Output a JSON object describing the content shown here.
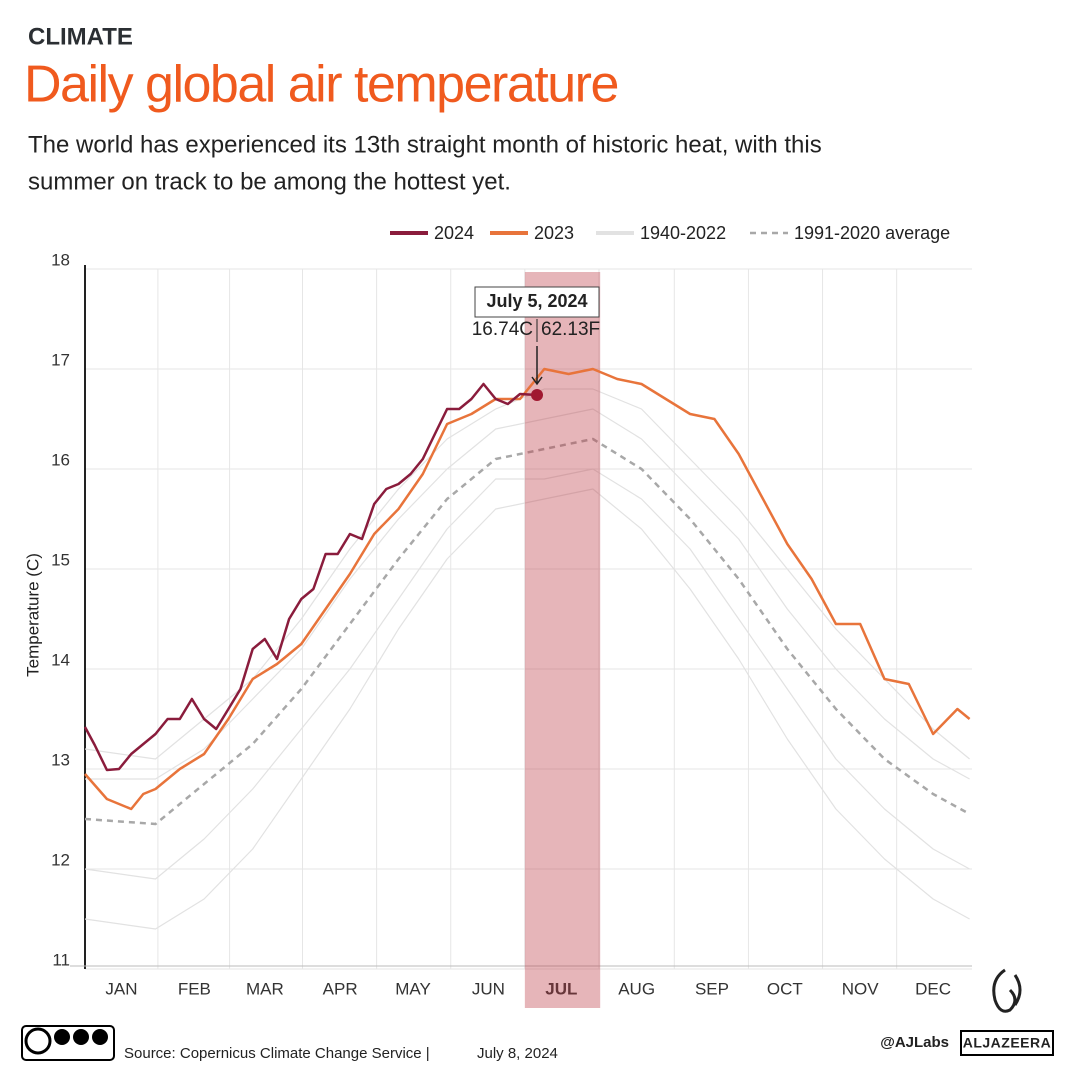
{
  "chart_data": {
    "type": "line",
    "kicker": "CLIMATE",
    "title": "Daily global air temperature",
    "subtitle": [
      "The world has experienced its 13th straight month of historic heat, with this",
      "summer on track to be among the hottest yet."
    ],
    "y_label": "Temperature (C)",
    "xlim": [
      1,
      366
    ],
    "ylim": [
      11,
      18
    ],
    "yticks": [
      11,
      12,
      13,
      14,
      15,
      16,
      17,
      18
    ],
    "xticks": [
      {
        "value": 16,
        "label": "JAN"
      },
      {
        "value": 46,
        "label": "FEB"
      },
      {
        "value": 75,
        "label": "MAR"
      },
      {
        "value": 106,
        "label": "APR"
      },
      {
        "value": 136,
        "label": "MAY"
      },
      {
        "value": 167,
        "label": "JUN"
      },
      {
        "value": 197,
        "label": "JUL"
      },
      {
        "value": 228,
        "label": "AUG"
      },
      {
        "value": 259,
        "label": "SEP"
      },
      {
        "value": 289,
        "label": "OCT"
      },
      {
        "value": 320,
        "label": "NOV"
      },
      {
        "value": 350,
        "label": "DEC"
      }
    ],
    "highlight_x": [
      182,
      213
    ],
    "grid": true,
    "series": [
      {
        "name": "1940-2022",
        "color": "#e2e2e2",
        "x": [
          1,
          30,
          50,
          70,
          90,
          110,
          130,
          150,
          170,
          190,
          210,
          230,
          250,
          270,
          290,
          310,
          330,
          350,
          365
        ],
        "values": [
          [
            11.5,
            11.4,
            11.7,
            12.2,
            12.9,
            13.6,
            14.4,
            15.1,
            15.6,
            15.7,
            15.8,
            15.4,
            14.8,
            14.1,
            13.3,
            12.6,
            12.1,
            11.7,
            11.5
          ],
          [
            12.0,
            11.9,
            12.3,
            12.8,
            13.4,
            14.0,
            14.7,
            15.4,
            15.9,
            15.9,
            16.0,
            15.7,
            15.2,
            14.5,
            13.8,
            13.1,
            12.6,
            12.2,
            12.0
          ],
          [
            12.9,
            12.9,
            13.2,
            13.7,
            14.2,
            14.9,
            15.5,
            16.0,
            16.4,
            16.5,
            16.6,
            16.3,
            15.8,
            15.3,
            14.6,
            14.0,
            13.5,
            13.1,
            12.9
          ],
          [
            13.2,
            13.1,
            13.5,
            13.9,
            14.5,
            15.2,
            15.8,
            16.3,
            16.6,
            16.8,
            16.8,
            16.6,
            16.1,
            15.6,
            15.0,
            14.4,
            13.9,
            13.4,
            13.1
          ]
        ]
      },
      {
        "name": "1991-2020 average",
        "color": "#a8a8a8",
        "dashed": true,
        "x": [
          1,
          30,
          50,
          70,
          90,
          110,
          130,
          150,
          170,
          190,
          210,
          230,
          250,
          270,
          290,
          310,
          330,
          350,
          365
        ],
        "values": [
          12.5,
          12.45,
          12.85,
          13.25,
          13.8,
          14.45,
          15.1,
          15.7,
          16.1,
          16.2,
          16.3,
          16.0,
          15.5,
          14.9,
          14.2,
          13.6,
          13.1,
          12.75,
          12.55
        ]
      },
      {
        "name": "2023",
        "color": "#e8743b",
        "x": [
          1,
          10,
          20,
          25,
          30,
          40,
          50,
          60,
          70,
          80,
          90,
          100,
          110,
          120,
          130,
          140,
          150,
          160,
          170,
          180,
          190,
          200,
          210,
          220,
          230,
          240,
          250,
          260,
          270,
          280,
          290,
          300,
          310,
          320,
          330,
          340,
          350,
          360,
          365
        ],
        "values": [
          12.95,
          12.7,
          12.6,
          12.75,
          12.8,
          13.0,
          13.15,
          13.5,
          13.9,
          14.05,
          14.25,
          14.6,
          14.95,
          15.35,
          15.6,
          15.95,
          16.45,
          16.55,
          16.7,
          16.7,
          17.0,
          16.95,
          17.0,
          16.9,
          16.85,
          16.7,
          16.55,
          16.5,
          16.15,
          15.7,
          15.25,
          14.9,
          14.45,
          14.45,
          13.9,
          13.85,
          13.35,
          13.6,
          13.5
        ]
      },
      {
        "name": "2024",
        "color": "#8a1c3c",
        "x": [
          1,
          5,
          10,
          15,
          20,
          30,
          35,
          40,
          45,
          50,
          55,
          60,
          65,
          70,
          75,
          80,
          85,
          90,
          95,
          100,
          105,
          110,
          115,
          120,
          125,
          130,
          135,
          140,
          145,
          150,
          155,
          160,
          165,
          170,
          175,
          180,
          187
        ],
        "values": [
          13.42,
          13.24,
          12.99,
          13.0,
          13.15,
          13.35,
          13.5,
          13.5,
          13.7,
          13.5,
          13.4,
          13.6,
          13.8,
          14.2,
          14.3,
          14.1,
          14.5,
          14.7,
          14.8,
          15.15,
          15.15,
          15.35,
          15.3,
          15.65,
          15.8,
          15.85,
          15.95,
          16.1,
          16.35,
          16.6,
          16.6,
          16.7,
          16.85,
          16.7,
          16.65,
          16.75,
          16.74
        ]
      }
    ],
    "annotation": {
      "date": "July 5, 2024",
      "x": 187,
      "y": 16.74,
      "celsius": "16.74C",
      "fahrenheit": "62.13F"
    },
    "source": "Source: Copernicus Climate Change Service |",
    "published": "July 8, 2024",
    "credit": "@AJLabs",
    "brand": "ALJAZEERA"
  }
}
